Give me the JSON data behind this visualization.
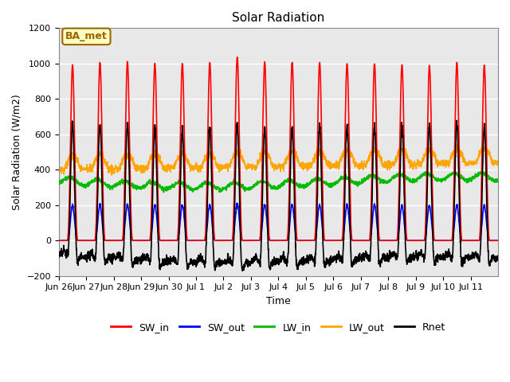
{
  "title": "Solar Radiation",
  "ylabel": "Solar Radiation (W/m2)",
  "xlabel": "Time",
  "ylim": [
    -200,
    1200
  ],
  "yticks": [
    -200,
    0,
    200,
    400,
    600,
    800,
    1000,
    1200
  ],
  "xtick_labels": [
    "Jun 26",
    "Jun 27",
    "Jun 28",
    "Jun 29",
    "Jun 30",
    "Jul 1",
    "Jul 2",
    "Jul 3",
    "Jul 4",
    "Jul 5",
    "Jul 6",
    "Jul 7",
    "Jul 8",
    "Jul 9",
    "Jul 10",
    "Jul 11"
  ],
  "annotation_text": "BA_met",
  "annotation_bg": "#FFFFC0",
  "annotation_border": "#996600",
  "series": {
    "SW_in": {
      "color": "#FF0000",
      "lw": 1.2
    },
    "SW_out": {
      "color": "#0000FF",
      "lw": 1.2
    },
    "LW_in": {
      "color": "#00BB00",
      "lw": 1.2
    },
    "LW_out": {
      "color": "#FFA500",
      "lw": 1.2
    },
    "Rnet": {
      "color": "#000000",
      "lw": 1.2
    }
  },
  "plot_bg_color": "#E8E8E8",
  "n_days": 16,
  "pts_per_day": 144
}
